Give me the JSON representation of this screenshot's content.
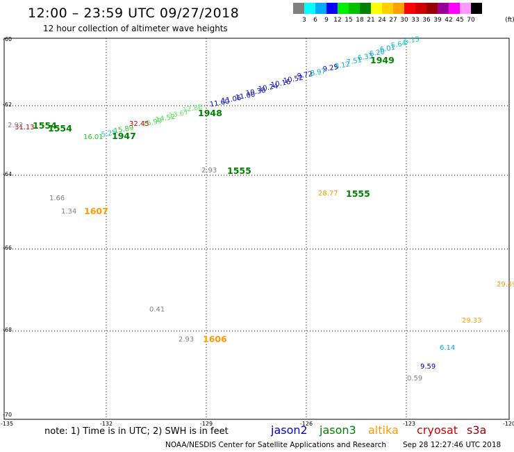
{
  "header": {
    "title": "12:00 – 23:59 UTC 09/27/2018",
    "subtitle": "12 hour collection of altimeter wave heights"
  },
  "colorbar": {
    "unit": "(ft)",
    "ticks": [
      "3",
      "6",
      "9",
      "12",
      "15",
      "18",
      "21",
      "24",
      "27",
      "30",
      "33",
      "36",
      "39",
      "42",
      "45",
      "70"
    ],
    "colors": [
      "#808080",
      "#00ffff",
      "#00aaff",
      "#0000ff",
      "#00ee00",
      "#00c000",
      "#008000",
      "#ffff00",
      "#ffd000",
      "#ffa000",
      "#ff0000",
      "#cc0000",
      "#990000",
      "#990099",
      "#ff00ff",
      "#ff99ff",
      "#000000"
    ]
  },
  "axes": {
    "lat_labels": [
      "-60",
      "-62",
      "-64",
      "-66",
      "-68",
      "-70"
    ],
    "lon_labels": [
      "-135",
      "-132",
      "-129",
      "-126",
      "-123",
      "-120"
    ]
  },
  "note": "note: 1) Time is in UTC; 2) SWH is in feet",
  "satellites": [
    {
      "name": "jason2",
      "color": "#0000cc"
    },
    {
      "name": "jason3",
      "color": "#008000"
    },
    {
      "name": "altika",
      "color": "#ff9900"
    },
    {
      "name": "cryosat",
      "color": "#cc0000"
    },
    {
      "name": "s3a",
      "color": "#990000"
    }
  ],
  "footer": {
    "credit": "NOAA/NESDIS Center for Satellite Applications and Research",
    "timestamp": "Sep 28 12:27:46 UTC 2018"
  },
  "track_values": [
    {
      "text": "5.13",
      "color": "#00cccc"
    },
    {
      "text": "5.64",
      "color": "#00cccc"
    },
    {
      "text": "6.01",
      "color": "#00aacc"
    },
    {
      "text": "6.20",
      "color": "#00aacc"
    },
    {
      "text": "6.33",
      "color": "#00aacc"
    },
    {
      "text": "7.51",
      "color": "#00aadd"
    },
    {
      "text": "8.12",
      "color": "#00aadd"
    },
    {
      "text": "9.25",
      "color": "#0000cc"
    },
    {
      "text": "8.97",
      "color": "#00aadd"
    },
    {
      "text": "9.72",
      "color": "#0000cc"
    },
    {
      "text": "10.52",
      "color": "#0000cc"
    },
    {
      "text": "10.16",
      "color": "#0000cc"
    },
    {
      "text": "10.24",
      "color": "#0000cc"
    },
    {
      "text": "10.38",
      "color": "#0000cc"
    },
    {
      "text": "11.00",
      "color": "#0000cc"
    },
    {
      "text": "11.06",
      "color": "#0000cc"
    },
    {
      "text": "11.60",
      "color": "#0000cc"
    },
    {
      "text": "12.88",
      "color": "#66ee66"
    },
    {
      "text": "13.67",
      "color": "#66ee66"
    },
    {
      "text": "14.52",
      "color": "#44dd44"
    },
    {
      "text": "15.99",
      "color": "#44dd44"
    },
    {
      "text": "15.89",
      "color": "#22cc22"
    },
    {
      "text": "16.01",
      "color": "#22cc22"
    },
    {
      "text": "5.25",
      "color": "#00cccc"
    },
    {
      "text": "32.45",
      "color": "#cc0000"
    },
    {
      "text": "31.13",
      "color": "#cc0000"
    },
    {
      "text": "2.92",
      "color": "#808080"
    },
    {
      "text": "2.93",
      "color": "#808080"
    },
    {
      "text": "1.66",
      "color": "#808080"
    },
    {
      "text": "1.34",
      "color": "#808080"
    },
    {
      "text": "28.77",
      "color": "#ff9900"
    },
    {
      "text": "0.41",
      "color": "#808080"
    },
    {
      "text": "2.93",
      "color": "#808080"
    },
    {
      "text": "29.59",
      "color": "#ff9900"
    },
    {
      "text": "29.33",
      "color": "#ff9900"
    },
    {
      "text": "6.14",
      "color": "#00aadd"
    },
    {
      "text": "9.59",
      "color": "#0000cc"
    },
    {
      "text": "0.59",
      "color": "#808080"
    }
  ],
  "pass_times": [
    {
      "text": "1949",
      "color": "#008000"
    },
    {
      "text": "1948",
      "color": "#008000"
    },
    {
      "text": "1947",
      "color": "#008000"
    },
    {
      "text": "1554",
      "color": "#008000"
    },
    {
      "text": "1554",
      "color": "#008000"
    },
    {
      "text": "1555",
      "color": "#008000"
    },
    {
      "text": "1555",
      "color": "#008000"
    },
    {
      "text": "1607",
      "color": "#ff9900"
    },
    {
      "text": "1606",
      "color": "#ff9900"
    }
  ]
}
